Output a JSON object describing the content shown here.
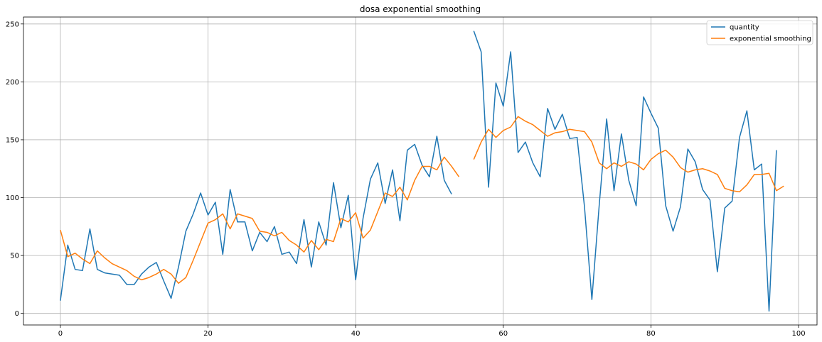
{
  "chart_data": {
    "type": "line",
    "title": "dosa exponential smoothing",
    "xlabel": "",
    "ylabel": "",
    "xlim": [
      -5,
      102.5
    ],
    "ylim": [
      -10,
      256
    ],
    "xticks": [
      0,
      20,
      40,
      60,
      80,
      100
    ],
    "yticks": [
      0,
      50,
      100,
      150,
      200,
      250
    ],
    "grid": true,
    "legend_position": "top-right",
    "series": [
      {
        "name": "quantity",
        "color": "#1f77b4",
        "x": [
          0,
          1,
          2,
          3,
          4,
          5,
          6,
          7,
          8,
          9,
          10,
          11,
          12,
          13,
          14,
          15,
          16,
          17,
          18,
          19,
          20,
          21,
          22,
          23,
          24,
          25,
          26,
          27,
          28,
          29,
          30,
          31,
          32,
          33,
          34,
          35,
          36,
          37,
          38,
          39,
          40,
          41,
          42,
          43,
          44,
          45,
          46,
          47,
          48,
          49,
          50,
          51,
          52,
          53,
          54,
          55,
          56,
          57,
          58,
          59,
          60,
          61,
          62,
          63,
          64,
          65,
          66,
          67,
          68,
          69,
          70,
          71,
          72,
          73,
          74,
          75,
          76,
          77,
          78,
          79,
          80,
          81,
          82,
          83,
          84,
          85,
          86,
          87,
          88,
          89,
          90,
          91,
          92,
          93,
          94,
          95,
          96,
          97
        ],
        "values": [
          11,
          59,
          38,
          37,
          73,
          38,
          35,
          34,
          33,
          25,
          25,
          34,
          40,
          44,
          28,
          13,
          40,
          71,
          86,
          104,
          85,
          96,
          51,
          107,
          79,
          79,
          54,
          70,
          62,
          75,
          51,
          53,
          43,
          81,
          40,
          79,
          59,
          113,
          74,
          102,
          29,
          82,
          116,
          130,
          95,
          124,
          80,
          141,
          146,
          128,
          118,
          153,
          115,
          103,
          null,
          null,
          244,
          226,
          109,
          199,
          179,
          226,
          139,
          148,
          130,
          118,
          177,
          159,
          172,
          151,
          152,
          92,
          12,
          94,
          168,
          106,
          155,
          115,
          93,
          187,
          173,
          160,
          93,
          71,
          92,
          142,
          131,
          107,
          98,
          36,
          91,
          97,
          152,
          175,
          124,
          129,
          2,
          141
        ]
      },
      {
        "name": "exponential smoothing",
        "color": "#ff7f0e",
        "x": [
          0,
          1,
          2,
          3,
          4,
          5,
          6,
          7,
          8,
          9,
          10,
          11,
          12,
          13,
          14,
          15,
          16,
          17,
          18,
          19,
          20,
          21,
          22,
          23,
          24,
          25,
          26,
          27,
          28,
          29,
          30,
          31,
          32,
          33,
          34,
          35,
          36,
          37,
          38,
          39,
          40,
          41,
          42,
          43,
          44,
          45,
          46,
          47,
          48,
          49,
          50,
          51,
          52,
          53,
          54,
          55,
          56,
          57,
          58,
          59,
          60,
          61,
          62,
          63,
          64,
          65,
          66,
          67,
          68,
          69,
          70,
          71,
          72,
          73,
          74,
          75,
          76,
          77,
          78,
          79,
          80,
          81,
          82,
          83,
          84,
          85,
          86,
          87,
          88,
          89,
          90,
          91,
          92,
          93,
          94,
          95,
          96,
          97,
          98
        ],
        "values": [
          72,
          49,
          52,
          47,
          43,
          54,
          48,
          43,
          40,
          37,
          32,
          29,
          31,
          34,
          38,
          34,
          26,
          31,
          46,
          62,
          78,
          81,
          86,
          73,
          86,
          84,
          82,
          71,
          70,
          67,
          70,
          63,
          59,
          53,
          63,
          55,
          64,
          62,
          82,
          79,
          87,
          65,
          72,
          88,
          104,
          101,
          109,
          98,
          115,
          127,
          127,
          124,
          135,
          127,
          118,
          null,
          133,
          148,
          159,
          152,
          158,
          161,
          170,
          166,
          163,
          158,
          153,
          156,
          157,
          159,
          158,
          157,
          148,
          130,
          125,
          130,
          127,
          131,
          129,
          124,
          133,
          138,
          141,
          135,
          126,
          122,
          124,
          125,
          123,
          120,
          108,
          106,
          105,
          111,
          120,
          120,
          121,
          106,
          110
        ]
      }
    ]
  }
}
